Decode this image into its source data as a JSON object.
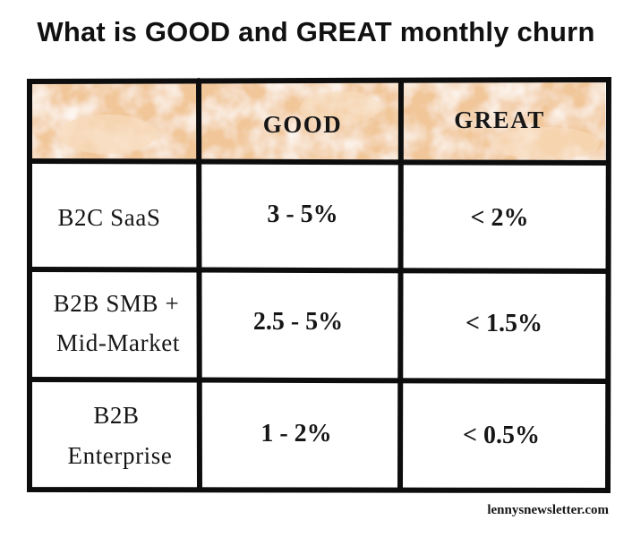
{
  "chart_data": {
    "type": "table",
    "title": "What is GOOD and GREAT monthly churn",
    "columns": [
      "",
      "GOOD",
      "GREAT"
    ],
    "rows": [
      {
        "label_lines": [
          "B2C SaaS"
        ],
        "good": "3 - 5%",
        "great": "< 2%"
      },
      {
        "label_lines": [
          "B2B SMB +",
          "Mid-Market"
        ],
        "good": "2.5 - 5%",
        "great": "< 1.5%"
      },
      {
        "label_lines": [
          "B2B",
          "Enterprise"
        ],
        "good": "1 - 2%",
        "great": "< 0.5%"
      }
    ]
  },
  "credit": "lennysnewsletter.com",
  "colors": {
    "header_fill": "#f1c79a",
    "header_light": "#f8dcbc",
    "grid_line": "#0d0d0d",
    "text": "#161616"
  }
}
